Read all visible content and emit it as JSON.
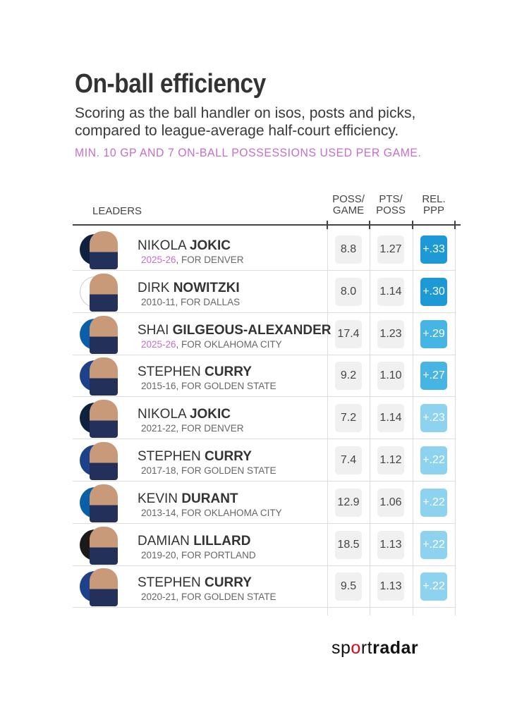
{
  "header": {
    "title": "On-ball efficiency",
    "subtitle": "Scoring as the ball handler on isos, posts and picks, compared to league-average half-court efficiency.",
    "note": "MIN. 10 GP AND 7 ON-BALL POSSESSIONS USED PER GAME."
  },
  "chart_data": {
    "type": "table",
    "columns": [
      "LEADERS",
      "POSS/ GAME",
      "PTS/ POSS",
      "REL. PPP"
    ],
    "rows": [
      {
        "first": "NIKOLA",
        "last": "JOKIC",
        "season": "2025-26",
        "team": ", FOR DENVER",
        "current": true,
        "poss": "8.8",
        "pts": "1.27",
        "rel": "+.33",
        "color": "#1d9ad6",
        "logo": "#0e2240"
      },
      {
        "first": "DIRK",
        "last": "NOWITZKI",
        "season": "2010-11",
        "team": ", FOR DALLAS",
        "current": false,
        "poss": "8.0",
        "pts": "1.14",
        "rel": "+.30",
        "color": "#1d9ad6",
        "logo": "#ffffff"
      },
      {
        "first": "SHAI",
        "last": "GILGEOUS-ALEXANDER",
        "season": "2025-26",
        "team": ", FOR OKLAHOMA CITY",
        "current": true,
        "poss": "17.4",
        "pts": "1.23",
        "rel": "+.29",
        "color": "#47b5e4",
        "logo": "#0b5fa8"
      },
      {
        "first": "STEPHEN",
        "last": "CURRY",
        "season": "2015-16",
        "team": ", FOR GOLDEN STATE",
        "current": false,
        "poss": "9.2",
        "pts": "1.10",
        "rel": "+.27",
        "color": "#47b5e4",
        "logo": "#1d428a"
      },
      {
        "first": "NIKOLA",
        "last": "JOKIC",
        "season": "2021-22",
        "team": ", FOR DENVER",
        "current": false,
        "poss": "7.2",
        "pts": "1.14",
        "rel": "+.23",
        "color": "#8dd3f0",
        "logo": "#0e2240"
      },
      {
        "first": "STEPHEN",
        "last": "CURRY",
        "season": "2017-18",
        "team": ", FOR GOLDEN STATE",
        "current": false,
        "poss": "7.4",
        "pts": "1.12",
        "rel": "+.22",
        "color": "#8dd3f0",
        "logo": "#1d428a"
      },
      {
        "first": "KEVIN",
        "last": "DURANT",
        "season": "2013-14",
        "team": ", FOR OKLAHOMA CITY",
        "current": false,
        "poss": "12.9",
        "pts": "1.06",
        "rel": "+.22",
        "color": "#8dd3f0",
        "logo": "#0b5fa8"
      },
      {
        "first": "DAMIAN",
        "last": "LILLARD",
        "season": "2019-20",
        "team": ", FOR PORTLAND",
        "current": false,
        "poss": "18.5",
        "pts": "1.13",
        "rel": "+.22",
        "color": "#8dd3f0",
        "logo": "#1a1a1a"
      },
      {
        "first": "STEPHEN",
        "last": "CURRY",
        "season": "2020-21",
        "team": ", FOR GOLDEN STATE",
        "current": false,
        "poss": "9.5",
        "pts": "1.13",
        "rel": "+.22",
        "color": "#8dd3f0",
        "logo": "#1d428a"
      }
    ]
  },
  "footer": {
    "brand_light": "sp",
    "brand_o": "o",
    "brand_mid": "rt",
    "brand_bold": "radar"
  }
}
